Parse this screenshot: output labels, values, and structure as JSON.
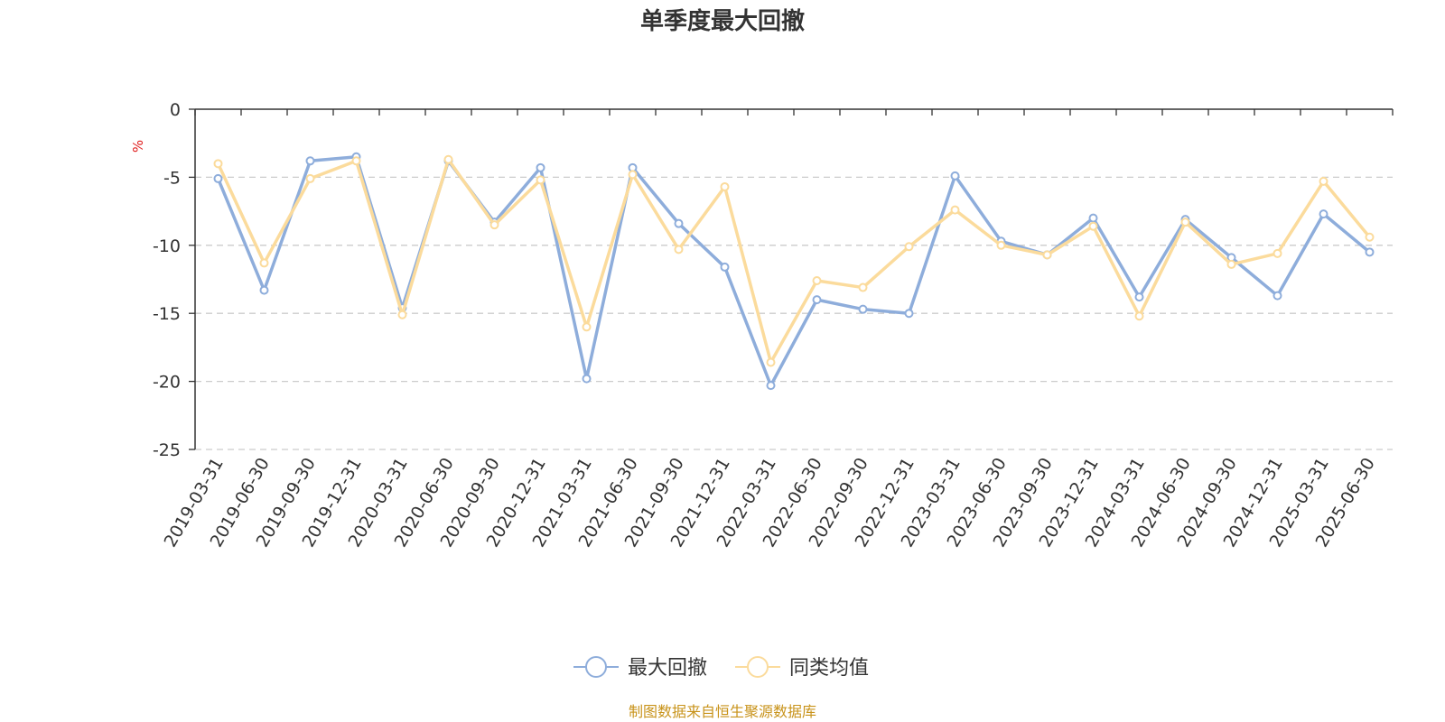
{
  "chart_data": {
    "type": "line",
    "title": "单季度最大回撤",
    "ylabel": "%",
    "ylim": [
      -25,
      0
    ],
    "yticks": [
      0,
      -5,
      -10,
      -15,
      -20,
      -25
    ],
    "grid": true,
    "legend_position": "bottom-center",
    "categories": [
      "2019-03-31",
      "2019-06-30",
      "2019-09-30",
      "2019-12-31",
      "2020-03-31",
      "2020-06-30",
      "2020-09-30",
      "2020-12-31",
      "2021-03-31",
      "2021-06-30",
      "2021-09-30",
      "2021-12-31",
      "2022-03-31",
      "2022-06-30",
      "2022-09-30",
      "2022-12-31",
      "2023-03-31",
      "2023-06-30",
      "2023-09-30",
      "2023-12-31",
      "2024-03-31",
      "2024-06-30",
      "2024-09-30",
      "2024-12-31",
      "2025-03-31",
      "2025-06-30"
    ],
    "series": [
      {
        "name": "最大回撤",
        "color": "#8eaddb",
        "values": [
          -5.1,
          -13.3,
          -3.8,
          -3.5,
          -14.6,
          -3.8,
          -8.3,
          -4.3,
          -19.8,
          -4.3,
          -8.4,
          -11.6,
          -20.3,
          -14.0,
          -14.7,
          -15.0,
          -4.9,
          -9.7,
          -10.7,
          -8.0,
          -13.8,
          -8.1,
          -10.9,
          -13.7,
          -7.7,
          -10.5
        ]
      },
      {
        "name": "同类均值",
        "color": "#fbdb9c",
        "values": [
          -4.0,
          -11.3,
          -5.1,
          -3.8,
          -15.1,
          -3.7,
          -8.5,
          -5.2,
          -16.0,
          -4.8,
          -10.3,
          -5.7,
          -18.6,
          -12.6,
          -13.1,
          -10.1,
          -7.4,
          -10.0,
          -10.7,
          -8.6,
          -15.2,
          -8.3,
          -11.4,
          -10.6,
          -5.3,
          -9.4
        ]
      }
    ]
  },
  "footer": {
    "source": "制图数据来自恒生聚源数据库",
    "source_color": "#c8931a"
  },
  "colors": {
    "unit_label": "#e02020",
    "axis": "#333333",
    "grid": "#cccccc"
  }
}
